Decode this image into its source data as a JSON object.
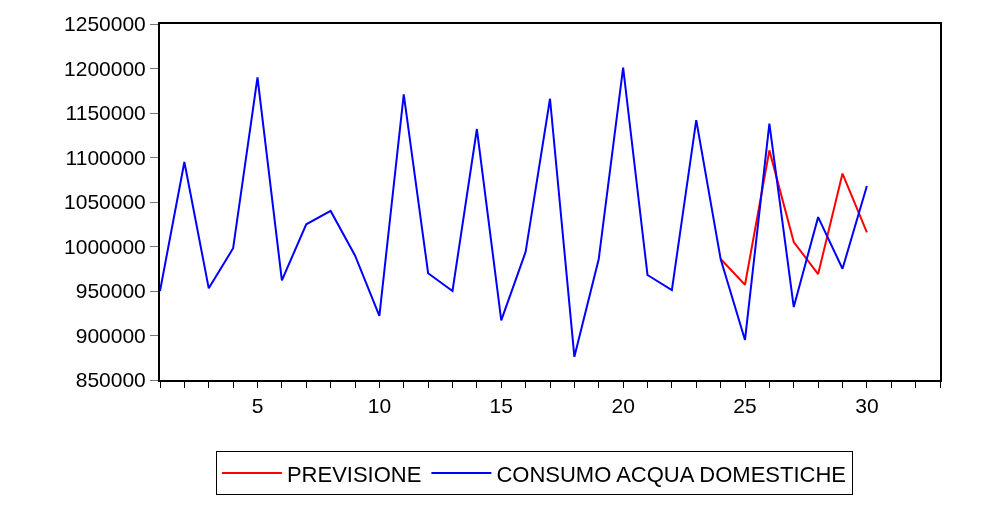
{
  "chart_data": {
    "type": "line",
    "x": [
      1,
      2,
      3,
      4,
      5,
      6,
      7,
      8,
      9,
      10,
      11,
      12,
      13,
      14,
      15,
      16,
      17,
      18,
      19,
      20,
      21,
      22,
      23,
      24,
      25,
      26,
      27,
      28,
      29,
      30
    ],
    "series": [
      {
        "name": "PREVISIONE",
        "color": "#ff0000",
        "values": [
          null,
          null,
          null,
          null,
          null,
          null,
          null,
          null,
          null,
          null,
          null,
          null,
          null,
          null,
          null,
          null,
          null,
          null,
          null,
          null,
          null,
          null,
          null,
          986000,
          957000,
          1108000,
          1005000,
          969000,
          1082000,
          1016000
        ]
      },
      {
        "name": "CONSUMO ACQUA DOMESTICHE",
        "color": "#0000ff",
        "values": [
          950000,
          1095000,
          953000,
          998000,
          1190000,
          962000,
          1025000,
          1040000,
          990000,
          922000,
          1171000,
          970000,
          950000,
          1132000,
          917000,
          994000,
          1166000,
          876000,
          986000,
          1201000,
          968000,
          951000,
          1142000,
          986000,
          895000,
          1138000,
          932000,
          1033000,
          975000,
          1068000
        ]
      }
    ],
    "xlim": [
      1,
      33
    ],
    "xticks": [
      {
        "value": 1,
        "label": null
      },
      {
        "value": 2,
        "label": null
      },
      {
        "value": 3,
        "label": null
      },
      {
        "value": 4,
        "label": null
      },
      5,
      {
        "value": 6,
        "label": null
      },
      {
        "value": 7,
        "label": null
      },
      {
        "value": 8,
        "label": null
      },
      {
        "value": 9,
        "label": null
      },
      10,
      {
        "value": 11,
        "label": null
      },
      {
        "value": 12,
        "label": null
      },
      {
        "value": 13,
        "label": null
      },
      {
        "value": 14,
        "label": null
      },
      15,
      {
        "value": 16,
        "label": null
      },
      {
        "value": 17,
        "label": null
      },
      {
        "value": 18,
        "label": null
      },
      {
        "value": 19,
        "label": null
      },
      20,
      {
        "value": 21,
        "label": null
      },
      {
        "value": 22,
        "label": null
      },
      {
        "value": 23,
        "label": null
      },
      {
        "value": 24,
        "label": null
      },
      25,
      {
        "value": 26,
        "label": null
      },
      {
        "value": 27,
        "label": null
      },
      {
        "value": 28,
        "label": null
      },
      {
        "value": 29,
        "label": null
      },
      30,
      {
        "value": 31,
        "label": null
      },
      {
        "value": 32,
        "label": null
      },
      {
        "value": 33,
        "label": null
      }
    ],
    "ylim": [
      850000,
      1250000
    ],
    "yticks": [
      850000,
      900000,
      950000,
      1000000,
      1050000,
      1100000,
      1150000,
      1200000,
      1250000
    ],
    "legend": "bottom",
    "marker": "none",
    "line_style": "solid"
  }
}
